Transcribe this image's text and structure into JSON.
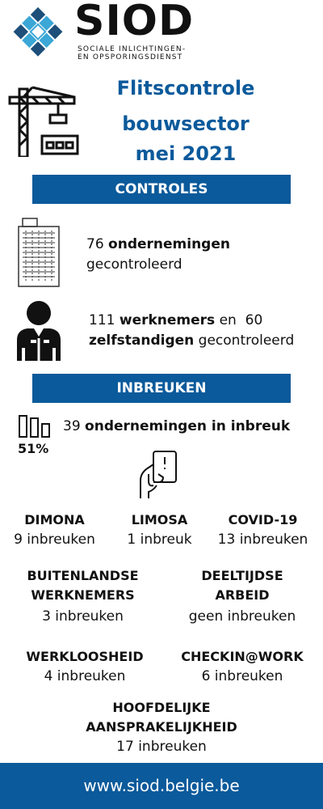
{
  "logo": {
    "name": "SIOD",
    "sub1": "SOCIALE INLICHTINGEN-",
    "sub2": "EN OPSPORINGSDIENST"
  },
  "title": {
    "line1": "Flitscontrole",
    "line2": "bouwsector",
    "line3": "mei 2021"
  },
  "controles": {
    "heading": "CONTROLES",
    "companies": {
      "count": "76",
      "bold": "ondernemingen",
      "rest": "gecontroleerd"
    },
    "workers": {
      "count1": "111",
      "bold1": "werknemers",
      "mid": "en",
      "count2": "60",
      "bold2": "zelfstandigen",
      "rest": "gecontroleerd"
    }
  },
  "inbreuken": {
    "heading": "INBREUKEN",
    "percent": "51%",
    "companies": {
      "count": "39",
      "bold": "ondernemingen in inbreuk"
    },
    "categories": [
      {
        "name": "DIMONA",
        "value": "9 inbreuken"
      },
      {
        "name": "LIMOSA",
        "value": "1 inbreuk"
      },
      {
        "name": "COVID-19",
        "value": "13 inbreuken"
      },
      {
        "name1": "BUITENLANDSE",
        "name2": "WERKNEMERS",
        "value": "3 inbreuken"
      },
      {
        "name1": "DEELTIJDSE",
        "name2": "ARBEID",
        "value": "geen inbreuken"
      },
      {
        "name": "WERKLOOSHEID",
        "value": "4 inbreuken"
      },
      {
        "name": "CHECKIN@WORK",
        "value": "6 inbreuken"
      },
      {
        "name1": "HOOFDELIJKE",
        "name2": "AANSPRAKELIJKHEID",
        "value": "17 inbreuken"
      }
    ]
  },
  "footer": {
    "url": "www.siod.belgie.be"
  },
  "colors": {
    "brand_blue": "#0b5a9b",
    "logo_light": "#3aa7d6",
    "logo_dark": "#1d4f7a"
  }
}
